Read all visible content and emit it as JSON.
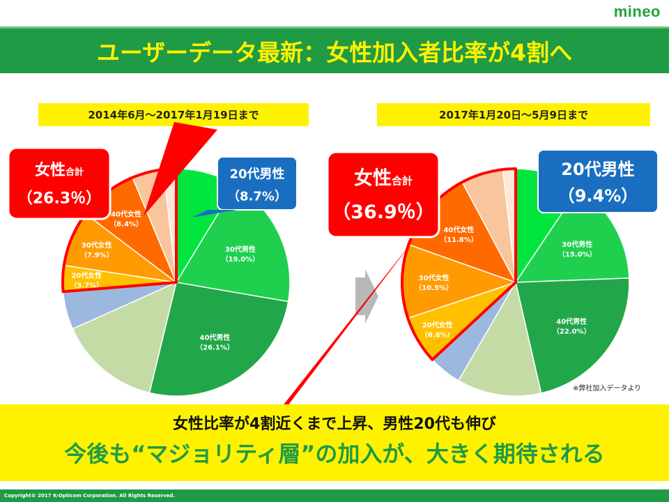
{
  "logo": "mineo",
  "title": "ユーザーデータ最新：女性加入者比率が4割へ",
  "source_note": "※弊社加入データより",
  "bottom": {
    "line1": "女性比率が4割近くまで上昇、男性20代も伸び",
    "line2": "今後も“マジョリティ層”の加入が、大きく期待される"
  },
  "footer": "Copyright© 2017 K-Opticom Corporation. All Rights Reserved.",
  "colors": {
    "male_20": "#00e63f",
    "male_30": "#1fd04f",
    "male_40": "#22a64a",
    "male_50": "#c4dba6",
    "male_60": "#9db8df",
    "female_20": "#ffc000",
    "female_30": "#ff9a00",
    "female_40": "#ff6a00",
    "female_50": "#f8c59c",
    "female_60": "#fde6da",
    "callout_red": "#ff0000",
    "callout_blue": "#1a6ec0"
  },
  "chart_data": [
    {
      "type": "pie",
      "title": "2014年6月～2017年1月19日まで",
      "slices": [
        {
          "key": "male_20",
          "label": "20代男性",
          "value_label": "（8.7%）",
          "value": 8.7
        },
        {
          "key": "male_30",
          "label": "30代男性",
          "value_label": "（19.0%）",
          "value": 19.0
        },
        {
          "key": "male_40",
          "label": "40代男性",
          "value_label": "（26.1%）",
          "value": 26.1
        },
        {
          "key": "male_50",
          "label": "",
          "value_label": "",
          "value": 14.5
        },
        {
          "key": "male_60",
          "label": "",
          "value_label": "",
          "value": 5.4
        },
        {
          "key": "female_20",
          "label": "20代女性",
          "value_label": "（3.7%）",
          "value": 3.7
        },
        {
          "key": "female_30",
          "label": "30代女性",
          "value_label": "（7.9%）",
          "value": 7.9
        },
        {
          "key": "female_40",
          "label": "40代女性",
          "value_label": "（8.4%）",
          "value": 8.4
        },
        {
          "key": "female_50",
          "label": "",
          "value_label": "",
          "value": 4.5
        },
        {
          "key": "female_60",
          "label": "",
          "value_label": "",
          "value": 1.8
        }
      ],
      "female_total": {
        "label": "女性合計",
        "label_suffix": "合計",
        "label_prefix": "女性",
        "value_label": "（26.3％）",
        "value": 26.3
      },
      "male20_callout": {
        "label": "20代男性",
        "value_label": "（8.7%）"
      }
    },
    {
      "type": "pie",
      "title": "2017年1月20日～5月9日まで",
      "slices": [
        {
          "key": "male_20",
          "label": "20代男性",
          "value_label": "（9.4%）",
          "value": 9.4
        },
        {
          "key": "male_30",
          "label": "30代男性",
          "value_label": "（15.0%）",
          "value": 15.0
        },
        {
          "key": "male_40",
          "label": "40代男性",
          "value_label": "（22.0%）",
          "value": 22.0
        },
        {
          "key": "male_50",
          "label": "",
          "value_label": "",
          "value": 12.0
        },
        {
          "key": "male_60",
          "label": "",
          "value_label": "",
          "value": 4.7
        },
        {
          "key": "female_20",
          "label": "20代女性",
          "value_label": "（6.8%）",
          "value": 6.8
        },
        {
          "key": "female_30",
          "label": "30代女性",
          "value_label": "（10.5%）",
          "value": 10.5
        },
        {
          "key": "female_40",
          "label": "40代女性",
          "value_label": "（11.8%）",
          "value": 11.8
        },
        {
          "key": "female_50",
          "label": "",
          "value_label": "",
          "value": 6.0
        },
        {
          "key": "female_60",
          "label": "",
          "value_label": "",
          "value": 1.8
        }
      ],
      "female_total": {
        "label": "女性合計",
        "label_suffix": "合計",
        "label_prefix": "女性",
        "value_label": "（36.9％）",
        "value": 36.9
      },
      "male20_callout": {
        "label": "20代男性",
        "value_label": "（9.4%）"
      }
    }
  ]
}
